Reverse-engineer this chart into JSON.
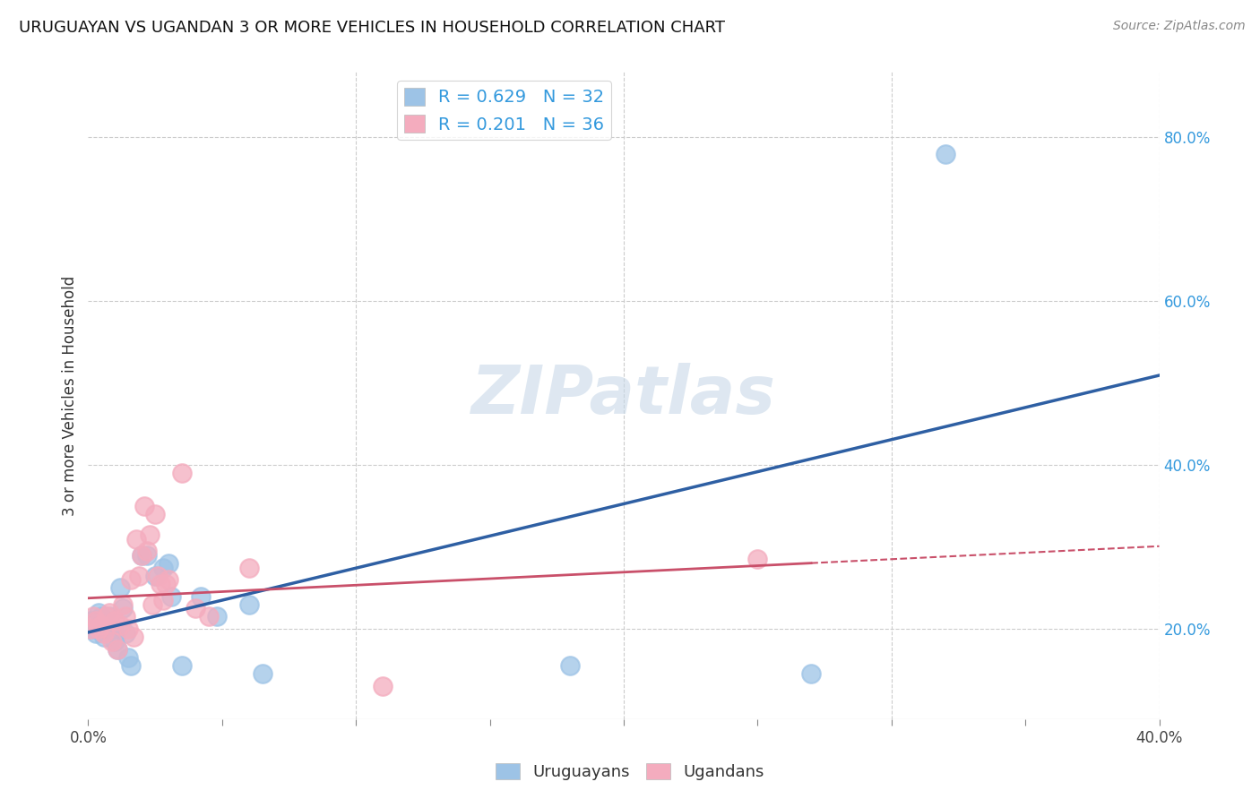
{
  "title": "URUGUAYAN VS UGANDAN 3 OR MORE VEHICLES IN HOUSEHOLD CORRELATION CHART",
  "source": "Source: ZipAtlas.com",
  "ylabel": "3 or more Vehicles in Household",
  "xlim": [
    0.0,
    0.4
  ],
  "ylim": [
    0.09,
    0.88
  ],
  "uruguayan_color": "#9DC3E6",
  "ugandan_color": "#F4ACBE",
  "uruguayan_line_color": "#2E5FA3",
  "ugandan_line_color": "#C9506A",
  "legend_text_color": "#3399DD",
  "uruguayan_R": "0.629",
  "uruguayan_N": "32",
  "ugandan_R": "0.201",
  "ugandan_N": "36",
  "watermark": "ZIPatlas",
  "uruguayan_x": [
    0.001,
    0.002,
    0.003,
    0.004,
    0.005,
    0.005,
    0.006,
    0.007,
    0.008,
    0.009,
    0.01,
    0.01,
    0.011,
    0.012,
    0.013,
    0.014,
    0.015,
    0.016,
    0.02,
    0.022,
    0.025,
    0.028,
    0.03,
    0.031,
    0.035,
    0.042,
    0.048,
    0.06,
    0.065,
    0.18,
    0.27,
    0.32
  ],
  "uruguayan_y": [
    0.21,
    0.2,
    0.195,
    0.22,
    0.215,
    0.205,
    0.19,
    0.21,
    0.215,
    0.2,
    0.195,
    0.185,
    0.175,
    0.25,
    0.225,
    0.195,
    0.165,
    0.155,
    0.29,
    0.29,
    0.265,
    0.275,
    0.28,
    0.24,
    0.155,
    0.24,
    0.215,
    0.23,
    0.145,
    0.155,
    0.145,
    0.78
  ],
  "ugandan_x": [
    0.001,
    0.002,
    0.003,
    0.004,
    0.005,
    0.006,
    0.007,
    0.008,
    0.009,
    0.01,
    0.011,
    0.012,
    0.013,
    0.014,
    0.015,
    0.016,
    0.017,
    0.018,
    0.019,
    0.02,
    0.021,
    0.022,
    0.023,
    0.024,
    0.025,
    0.026,
    0.027,
    0.028,
    0.029,
    0.03,
    0.035,
    0.04,
    0.045,
    0.06,
    0.11,
    0.25
  ],
  "ugandan_y": [
    0.2,
    0.215,
    0.21,
    0.2,
    0.205,
    0.195,
    0.215,
    0.22,
    0.185,
    0.21,
    0.175,
    0.205,
    0.23,
    0.215,
    0.2,
    0.26,
    0.19,
    0.31,
    0.265,
    0.29,
    0.35,
    0.295,
    0.315,
    0.23,
    0.34,
    0.265,
    0.255,
    0.235,
    0.255,
    0.26,
    0.39,
    0.225,
    0.215,
    0.275,
    0.13,
    0.285
  ],
  "background_color": "#FFFFFF",
  "grid_color": "#CCCCCC",
  "ugandan_line_xmax": 0.27
}
